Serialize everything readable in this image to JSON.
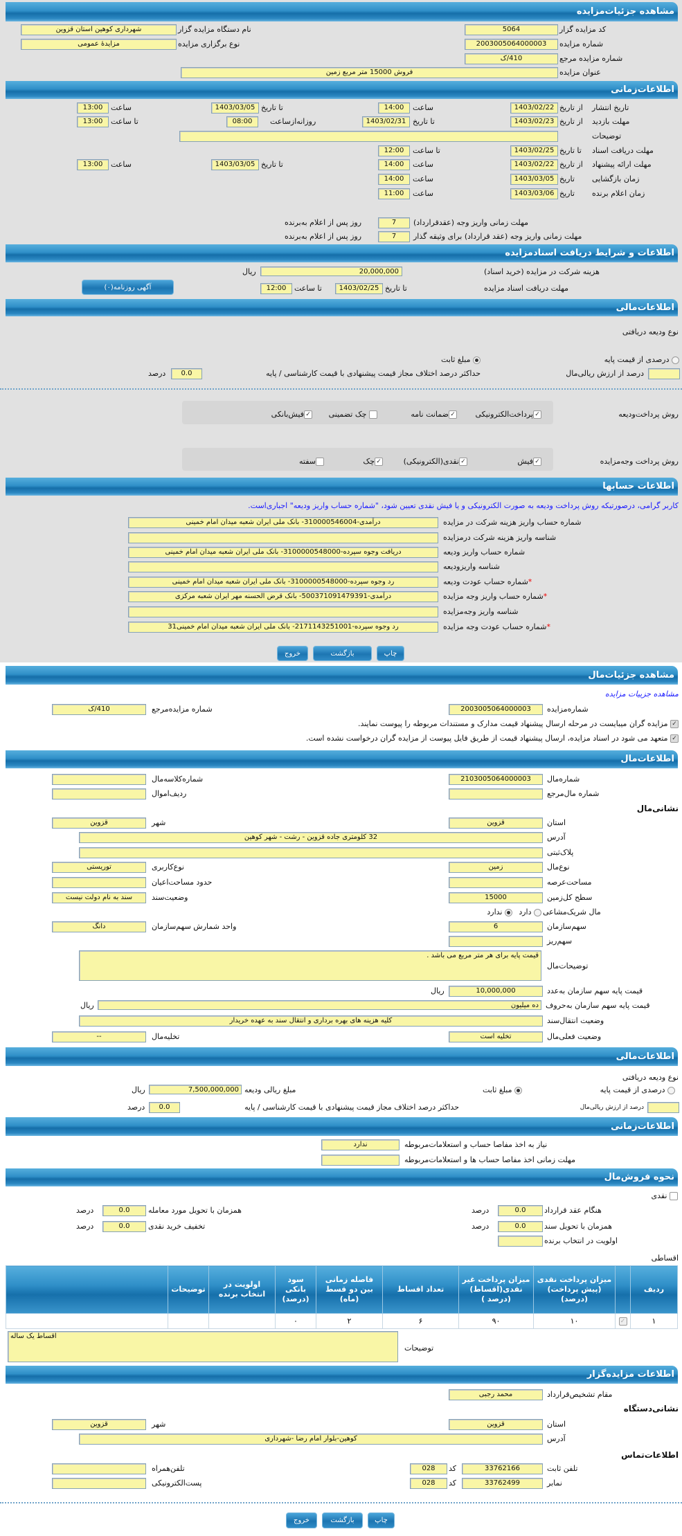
{
  "sec1": {
    "title": "مشاهده جزئیات‌مزایده",
    "code_l": "کد مزایده گزار",
    "code_v": "5064",
    "org_l": "نام دستگاه مزایده گزار",
    "org_v": "شهرداری کوهین استان قزوین",
    "num_l": "شماره مزایده",
    "num_v": "2003005064000003",
    "type_l": "نوع برگزاری مزایده",
    "type_v": "مزایدهٔ عمومی",
    "ref_l": "شماره مزایده مرجع",
    "ref_v": "410/ک",
    "subj_l": "عنوان مزایده",
    "subj_v": "فروش 15000 متر مربع زمین"
  },
  "time": {
    "title": "اطلاعات‌زمانی",
    "from_date": "از تاریخ",
    "to_date": "تا تاریخ",
    "date": "تاریخ",
    "hour": "ساعت",
    "to_hour": "تا ساعت",
    "daily_from": "روزانه‌ازساعت",
    "pub_l": "تاریخ انتشار",
    "pub_from": "1403/02/22",
    "pub_from_h": "14:00",
    "pub_to": "1403/03/05",
    "pub_to_h": "13:00",
    "visit_l": "مهلت بازدید",
    "visit_from": "1403/02/23",
    "visit_to": "1403/02/31",
    "visit_daily": "08:00",
    "visit_to_h": "13:00",
    "desc_l": "توضیحات",
    "desc_v": "",
    "doc_l": "مهلت دریافت اسناد",
    "doc_to": "1403/02/25",
    "doc_to_h": "12:00",
    "offer_l": "مهلت ارائه پیشنهاد",
    "offer_from": "1403/02/22",
    "offer_from_h": "14:00",
    "offer_to": "1403/03/05",
    "offer_to_h": "13:00",
    "open_l": "زمان بازگشایی",
    "open_d": "1403/03/05",
    "open_h": "14:00",
    "win_l": "زمان اعلام برنده",
    "win_d": "1403/03/06",
    "win_h": "11:00",
    "pay1_l": "مهلت زمانی واریز وجه (عقدقرارداد)",
    "pay1_v": "7",
    "pay2_l": "مهلت زمانی واریز وجه (عقد قرارداد) برای وثیقه گذار",
    "pay2_v": "7",
    "days_suffix": "روز پس از اعلام به‌برنده"
  },
  "docs": {
    "title": "اطلاعات و شرایط دریافت اسنادمزایده",
    "fee_l": "هزینه شرکت در مزایده (خرید اسناد)",
    "fee_v": "20,000,000",
    "rial": "ریال",
    "dl_l": "مهلت دریافت اسناد مزایده",
    "to_date": "تا تاریخ",
    "dl_d": "1403/02/25",
    "to_hour": "تا ساعت",
    "dl_h": "12:00",
    "news_btn": "آگهی روزنامه(۰)"
  },
  "fin": {
    "title": "اطلاعات‌مالی",
    "dep_type": "نوع ودیعه دریافتی",
    "pct_opt": "درصدی از قیمت پایه",
    "fixed_opt": "مبلغ ثابت",
    "selected": "مبلغ ثابت",
    "pct_val_l": "درصد از ارزش ریالی‌مال",
    "pct_val_v": "",
    "max_l": "حداکثر درصد اختلاف مجاز قیمت پیشنهادی با قیمت کارشناسی / پایه",
    "max_v": "0.0",
    "percent": "درصد",
    "dep_method_l": "روش پرداخت‌ودیعه",
    "dep_methods": [
      {
        "label": "پرداخت‌الکترونیکی",
        "checked": true
      },
      {
        "label": "ضمانت نامه",
        "checked": true
      },
      {
        "label": "چک تضمینی",
        "checked": false
      },
      {
        "label": "فیش‌بانکی",
        "checked": true
      }
    ],
    "pay_method_l": "روش پرداخت وجه‌مزایده",
    "pay_methods": [
      {
        "label": "فیش",
        "checked": true
      },
      {
        "label": "نقدی(الکترونیکی)",
        "checked": true
      },
      {
        "label": "چک",
        "checked": true
      },
      {
        "label": "سفته",
        "checked": false
      }
    ]
  },
  "acc": {
    "title": "اطلاعات حسابها",
    "notice": "کاربر گرامی، درصورتیکه روش پرداخت ودیعه به صورت الکترونیکی و یا فیش نقدی تعیین شود، \"شماره حساب واریز ودیعه\" اجباری‌است.",
    "rows": [
      {
        "label": "شماره حساب واریز هزینه شرکت در مزایده",
        "value": "درآمدی-310000546004- بانک ملی ایران شعبه میدان امام خمینی",
        "req": ""
      },
      {
        "label": "شناسه واریز هزینه شرکت درمزایده",
        "value": "",
        "req": ""
      },
      {
        "label": "شماره حساب واریز ودیعه",
        "value": "دریافت وجوه سپرده-3100000548000- بانک ملی ایران شعبه میدان امام خمینی",
        "req": ""
      },
      {
        "label": "شناسه واریزودیعه",
        "value": "",
        "req": ""
      },
      {
        "label": "شماره حساب عودت ودیعه",
        "value": "رد وجوه سپرده-3100000548000- بانک ملی ایران شعبه میدان امام خمینی",
        "req": "*"
      },
      {
        "label": "شماره حساب واریز وجه مزایده",
        "value": "درآمدی-500371091479391- بانک قرض الحسنه مهر ایران شعبه مرکزی",
        "req": "*"
      },
      {
        "label": "شناسه واریز وجه‌مزایده",
        "value": "",
        "req": ""
      },
      {
        "label": "شماره حساب عودت وجه مزایده",
        "value": "رد وجوه سپرده-2171143251001- بانک ملی ایران شعبه میدان امام خمینی31",
        "req": "*"
      }
    ]
  },
  "buttons": {
    "print": "چاپ",
    "back": "بازگشت",
    "exit": "خروج"
  },
  "item": {
    "title": "مشاهده جزئیات‌مال",
    "link": "مشاهده جزییات مزایده",
    "num_l": "شماره‌مزایده",
    "num_v": "2003005064000003",
    "ref_l": "شماره مزایده‌مرجع",
    "ref_v": "410/ک",
    "chk1": "مزایده گران میبایست در مرحله ارسال پیشنهاد قیمت مدارک و مستندات مربوطه را پیوست نمایند.",
    "chk2": "متعهد می شود در اسناد مزایده، ارسال پیشنهاد قیمت از طریق فایل پیوست از مزایده گران درخواست نشده است."
  },
  "prop": {
    "title": "اطلاعات‌مال",
    "pnum_l": "شماره‌مال",
    "pnum_v": "2103005064000003",
    "file_l": "شماره‌کلاسه‌مال",
    "file_v": "",
    "pref_l": "شماره مال‌مرجع",
    "pref_v": "",
    "row_l": "ردیف‌اموال",
    "row_v": "",
    "addr_h": "نشانی‌مال",
    "prov_l": "استان",
    "prov_v": "قزوین",
    "city_l": "شهر",
    "city_v": "قزوین",
    "addr_l": "آدرس",
    "addr_v": "32 کلومتری جاده قزوین - رشت - شهر کوهین",
    "plate_l": "پلاک‌ثبتی",
    "plate_v": "",
    "kind_l": "نوع‌مال",
    "kind_v": "زمین",
    "use_l": "نوع‌کاربری",
    "use_v": "توریستی",
    "area_l": "مساحت‌عرصه",
    "area_v": "",
    "barea_l": "حدود مساحت‌اعیان",
    "barea_v": "",
    "land_l": "سطح کل‌زمین",
    "land_v": "15000",
    "deed_l": "وضعیت‌سند",
    "deed_v": "سند به نام دولت نیست",
    "shared_l": "مال شریک‌مشاعی",
    "has": "دارد",
    "hasnot": "ندارد",
    "shared_sel": "ندارد",
    "share_l": "سهم‌سازمان",
    "share_v": "6",
    "unit_l": "واحد شمارش سهم‌سازمان",
    "unit_v": "دانگ",
    "sub_l": "سهم‌ریز",
    "sub_v": "",
    "desc_l": "توضیحات‌مال",
    "desc_v": "قیمت پایه برای هر متر مربع می باشد .",
    "pnum2_l": "قیمت پایه سهم سازمان به‌عدد",
    "pnum2_v": "10,000,000",
    "rial": "ریال",
    "pword_l": "قیمت پایه سهم سازمان به‌حروف",
    "pword_v": "ده میلیون",
    "trans_l": "وضعیت انتقال‌سند",
    "trans_v": "کلیه هزینه های بهره برداری و انتقال سند به عهده خریدار",
    "cur_l": "وضعیت فعلی‌مال",
    "cur_v": "تخلیه است",
    "evac_l": "تخلیه‌مال",
    "evac_v": "--"
  },
  "fin2": {
    "title": "اطلاعات‌مالی",
    "dep_type": "نوع ودیعه دریافتی",
    "pct_opt": "درصدی از قیمت پایه",
    "fixed_opt": "مبلغ ثابت",
    "selected": "مبلغ ثابت",
    "amt_l": "مبلغ ریالی ودیعه",
    "amt_v": "7,500,000,000",
    "rial": "ریال",
    "pct_val_l": "درصد از ارزش ریالی‌مال",
    "pct_val_v": "",
    "max_l": "حداکثر درصد اختلاف مجاز قیمت پیشنهادی با قیمت کارشناسی / پایه",
    "max_v": "0.0",
    "percent": "درصد"
  },
  "time2": {
    "title": "اطلاعات‌زمانی",
    "need_l": "نیاز به اخذ مفاصا حساب و استعلامات‌مربوطه",
    "need_v": "ندارد",
    "dead_l": "مهلت زمانی اخذ مفاصا حساب ها و استعلامات‌مربوطه",
    "dead_v": ""
  },
  "sale": {
    "title": "نحوه فروش‌مال",
    "cash": "نقدی",
    "percent": "درصد",
    "contract_l": "هنگام عقد قرارداد",
    "contract_v": "0.0",
    "deliv_l": "همزمان با تحویل مورد معامله",
    "deliv_v": "0.0",
    "deed_l": "همزمان با تحویل سند",
    "deed_v": "0.0",
    "disc_l": "تخفیف خرید نقدی",
    "disc_v": "0.0",
    "prio_l": "اولویت در انتخاب برنده",
    "prio_v": "",
    "inst": "اقساطی",
    "cols": [
      "ردیف",
      "",
      "میزان پرداخت نقدی (پیش پرداخت)(درصد)",
      "میزان پرداخت غیر نقدی(اقساط) (درصد )",
      "تعداد اقساط",
      "فاصله زمانی بین دو قسط (ماه)",
      "سود بانکی (درصد)",
      "اولویت در انتخاب برنده",
      "توضیحات",
      ""
    ],
    "row": [
      "۱",
      "✓",
      "۱۰",
      "۹۰",
      "۶",
      "۲",
      "۰",
      "",
      "",
      ""
    ],
    "desc_l": "توضیحات",
    "desc_v": "اقساط یک ساله"
  },
  "org": {
    "title": "اطلاعات مزایده‌گزار",
    "auth_l": "مقام تشخیص‌قرارداد",
    "auth_v": "محمد رجبی",
    "addr_h": "نشانی‌دستگاه",
    "prov_l": "استان",
    "prov_v": "قزوین",
    "city_l": "شهر",
    "city_v": "قزوین",
    "addr_l": "آدرس",
    "addr_v": "کوهین-بلوار امام رضا -شهرداری",
    "contact_h": "اطلاعات‌تماس",
    "tel_l": "تلفن ثابت",
    "tel_v": "33762166",
    "code_l": "کد",
    "tel_code": "028",
    "mob_l": "تلفن‌همراه",
    "mob_v": "",
    "fax_l": "نمابر",
    "fax_v": "33762499",
    "fax_code": "028",
    "email_l": "پست‌الکترونیکی",
    "email_v": ""
  },
  "colors": {
    "header": "#1670ab",
    "field": "#f9f6a6",
    "notice": "#1a1aff",
    "required": "#e00000"
  }
}
